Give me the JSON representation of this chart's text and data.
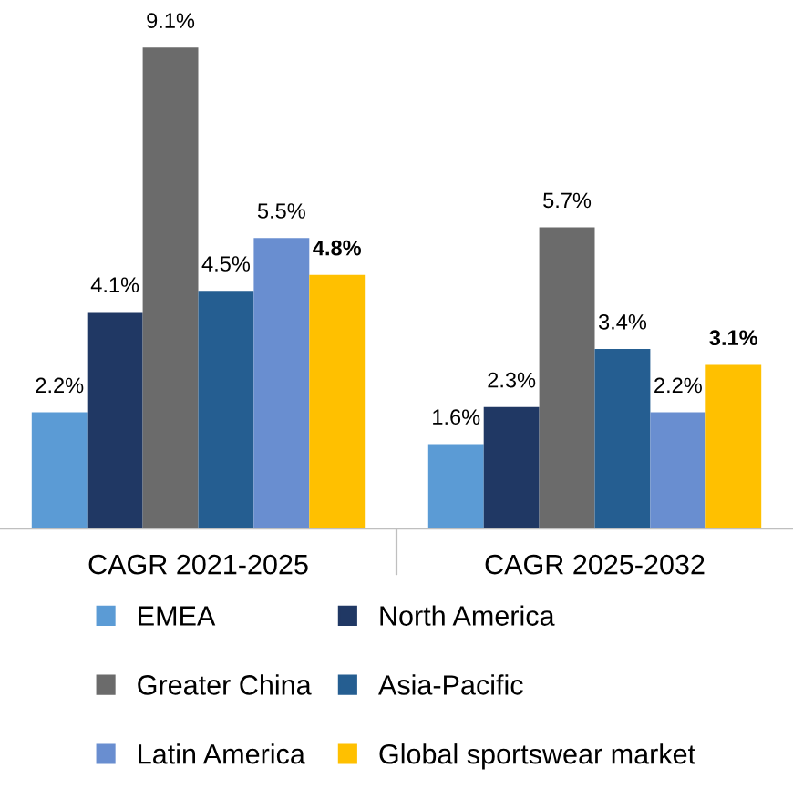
{
  "chart_data": {
    "type": "bar",
    "categories": [
      "CAGR 2021-2025",
      "CAGR 2025-2032"
    ],
    "tick_labels": "x",
    "legend": "bottom",
    "grid": false,
    "series": [
      {
        "name": "EMEA",
        "color": "#5b9bd5",
        "values": [
          2.2,
          1.6
        ],
        "value_labels": [
          "2.2%",
          "1.6%"
        ]
      },
      {
        "name": "North America",
        "color": "#203864",
        "values": [
          4.1,
          2.3
        ],
        "value_labels": [
          "4.1%",
          "2.3%"
        ]
      },
      {
        "name": "Greater China",
        "color": "#6b6b6b",
        "values": [
          9.1,
          5.7
        ],
        "value_labels": [
          "9.1%",
          "5.7%"
        ]
      },
      {
        "name": "Asia-Pacific",
        "color": "#255e91",
        "values": [
          4.5,
          3.4
        ],
        "value_labels": [
          "4.5%",
          "3.4%"
        ]
      },
      {
        "name": "Latin America",
        "color": "#698ed0",
        "values": [
          5.5,
          2.2
        ],
        "value_labels": [
          "5.5%",
          "2.2%"
        ]
      },
      {
        "name": "Global sportswear market",
        "color": "#ffc000",
        "values": [
          4.8,
          3.1
        ],
        "value_labels": [
          "4.8%",
          "3.1%"
        ]
      }
    ]
  }
}
